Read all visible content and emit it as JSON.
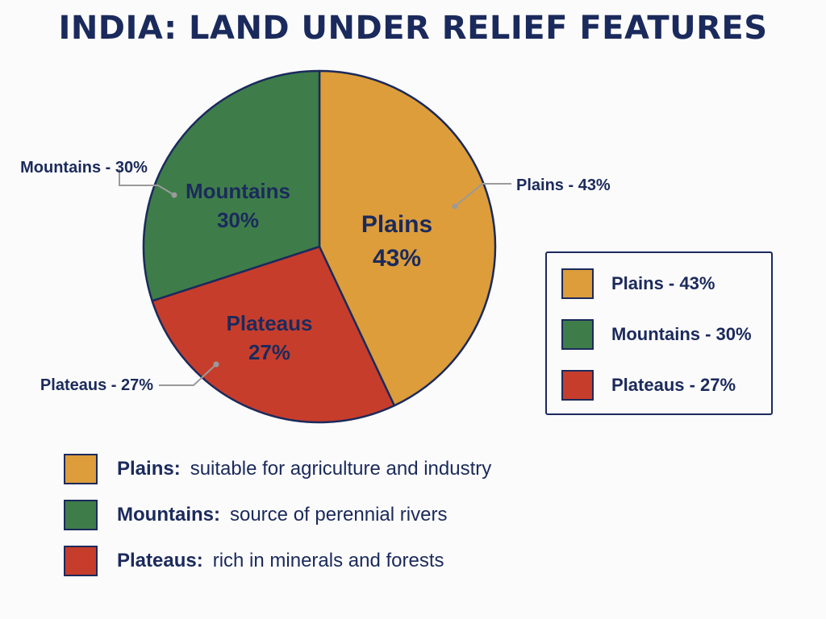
{
  "chart_data": {
    "type": "pie",
    "title": "INDIA: LAND UNDER RELIEF FEATURES",
    "slices": [
      {
        "name": "Plains",
        "value": 43,
        "pct_label": "43%",
        "callout": "Plains - 43%",
        "color": "#dc9d3a"
      },
      {
        "name": "Plateaus",
        "value": 27,
        "pct_label": "27%",
        "callout": "Plateaus - 27%",
        "color": "#c73d2c"
      },
      {
        "name": "Mountains",
        "value": 30,
        "pct_label": "30%",
        "callout": "Mountains - 30%",
        "color": "#3e7d4a"
      }
    ],
    "legend": {
      "placement": "right",
      "items": [
        "Plains - 43%",
        "Mountains - 30%",
        "Plateaus - 27%"
      ]
    }
  },
  "notes": [
    {
      "name": "Plains:",
      "desc": "suitable for agriculture and industry",
      "color": "#dc9d3a"
    },
    {
      "name": "Mountains:",
      "desc": "source of perennial rivers",
      "color": "#3e7d4a"
    },
    {
      "name": "Plateaus:",
      "desc": "rich in minerals and forests",
      "color": "#c73d2c"
    }
  ],
  "colors": {
    "text": "#1b2a5c",
    "outline": "#1b2a5c",
    "leader": "#9a9a9a"
  }
}
